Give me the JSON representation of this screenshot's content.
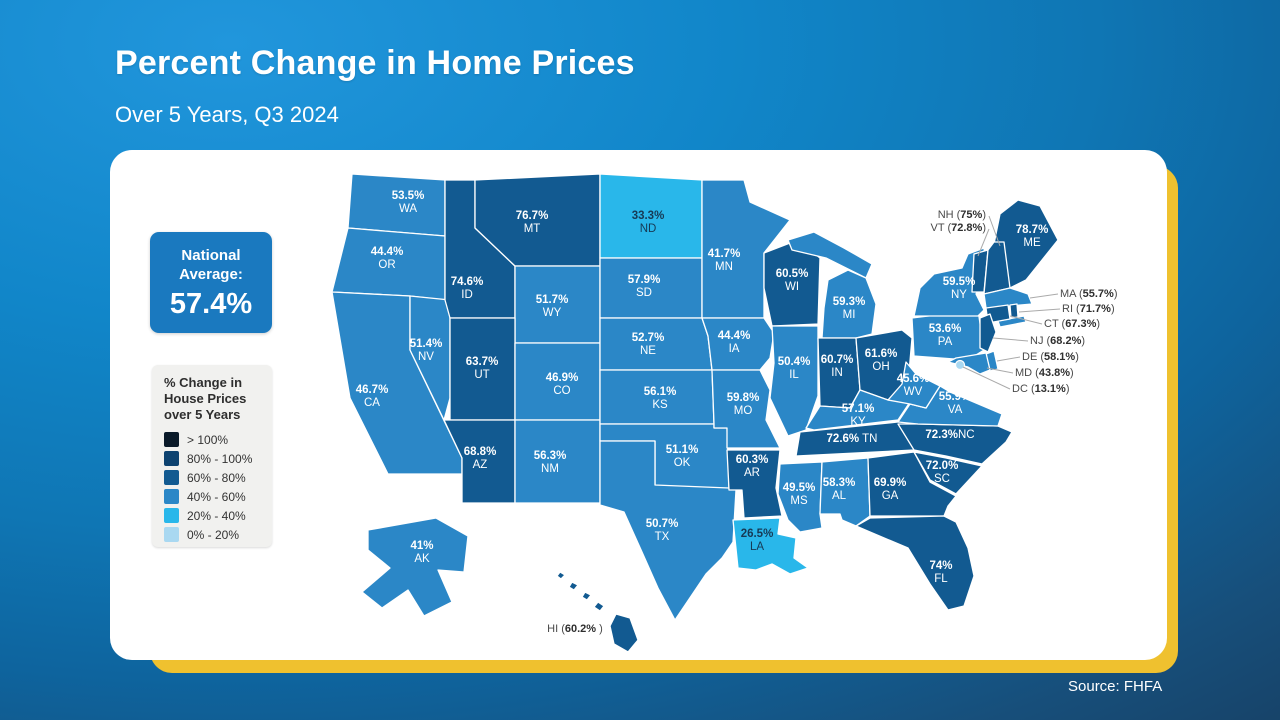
{
  "title": "Percent Change in Home Prices",
  "subtitle": "Over 5 Years, Q3 2024",
  "source": "Source: FHFA",
  "national_average": {
    "label_line1": "National",
    "label_line2": "Average:",
    "value": "57.4%"
  },
  "legend": {
    "title_lines": [
      "% Change in",
      "House Prices",
      "over 5 Years"
    ],
    "items": [
      {
        "label": "> 100%",
        "color": "#0a1a29"
      },
      {
        "label": "80% - 100%",
        "color": "#0d4270"
      },
      {
        "label": "60% - 80%",
        "color": "#125a91"
      },
      {
        "label": "40% - 60%",
        "color": "#2b87c7"
      },
      {
        "label": "20% - 40%",
        "color": "#29b7ea"
      },
      {
        "label": "0% - 20%",
        "color": "#a9d8f1"
      }
    ]
  },
  "colors": {
    "card": "#ffffff",
    "accent_card": "#efc12f",
    "avg_box": "#1a79bf",
    "state_border": "#ffffff",
    "label_light": "#ffffff",
    "label_dark": "#173a55",
    "callout_text": "#4a4a4a",
    "callout_value": "#2e2e2e",
    "leader_line": "#aaaaaa"
  },
  "chart_data": {
    "type": "choropleth",
    "title": "Percent Change in Home Prices",
    "subtitle": "Over 5 Years, Q3 2024",
    "unit": "percent change over 5 years",
    "national_average": 57.4,
    "bands": [
      ">100%",
      "80%-100%",
      "60%-80%",
      "40%-60%",
      "20%-40%",
      "0%-20%"
    ],
    "states": [
      {
        "abbr": "WA",
        "value": 53.5,
        "display": "53.5%"
      },
      {
        "abbr": "OR",
        "value": 44.4,
        "display": "44.4%"
      },
      {
        "abbr": "CA",
        "value": 46.7,
        "display": "46.7%"
      },
      {
        "abbr": "NV",
        "value": 51.4,
        "display": "51.4%"
      },
      {
        "abbr": "ID",
        "value": 74.6,
        "display": "74.6%"
      },
      {
        "abbr": "MT",
        "value": 76.7,
        "display": "76.7%"
      },
      {
        "abbr": "WY",
        "value": 51.7,
        "display": "51.7%"
      },
      {
        "abbr": "UT",
        "value": 63.7,
        "display": "63.7%"
      },
      {
        "abbr": "CO",
        "value": 46.9,
        "display": "46.9%"
      },
      {
        "abbr": "AZ",
        "value": 68.8,
        "display": "68.8%"
      },
      {
        "abbr": "NM",
        "value": 56.3,
        "display": "56.3%"
      },
      {
        "abbr": "ND",
        "value": 33.3,
        "display": "33.3%"
      },
      {
        "abbr": "SD",
        "value": 57.9,
        "display": "57.9%"
      },
      {
        "abbr": "NE",
        "value": 52.7,
        "display": "52.7%"
      },
      {
        "abbr": "KS",
        "value": 56.1,
        "display": "56.1%"
      },
      {
        "abbr": "OK",
        "value": 51.1,
        "display": "51.1%"
      },
      {
        "abbr": "TX",
        "value": 50.7,
        "display": "50.7%"
      },
      {
        "abbr": "MN",
        "value": 41.7,
        "display": "41.7%"
      },
      {
        "abbr": "IA",
        "value": 44.4,
        "display": "44.4%"
      },
      {
        "abbr": "MO",
        "value": 59.8,
        "display": "59.8%"
      },
      {
        "abbr": "AR",
        "value": 60.3,
        "display": "60.3%"
      },
      {
        "abbr": "LA",
        "value": 26.5,
        "display": "26.5%"
      },
      {
        "abbr": "WI",
        "value": 60.5,
        "display": "60.5%"
      },
      {
        "abbr": "IL",
        "value": 50.4,
        "display": "50.4%"
      },
      {
        "abbr": "MS",
        "value": 49.5,
        "display": "49.5%"
      },
      {
        "abbr": "MI",
        "value": 59.3,
        "display": "59.3%"
      },
      {
        "abbr": "IN",
        "value": 60.7,
        "display": "60.7%"
      },
      {
        "abbr": "OH",
        "value": 61.6,
        "display": "61.6%"
      },
      {
        "abbr": "KY",
        "value": 57.1,
        "display": "57.1%"
      },
      {
        "abbr": "TN",
        "value": 72.6,
        "display": "72.6%"
      },
      {
        "abbr": "AL",
        "value": 58.3,
        "display": "58.3%"
      },
      {
        "abbr": "GA",
        "value": 69.9,
        "display": "69.9%"
      },
      {
        "abbr": "FL",
        "value": 74.0,
        "display": "74%"
      },
      {
        "abbr": "SC",
        "value": 72.0,
        "display": "72.0%"
      },
      {
        "abbr": "NC",
        "value": 72.3,
        "display": "72.3%"
      },
      {
        "abbr": "VA",
        "value": 55.9,
        "display": "55.9%"
      },
      {
        "abbr": "WV",
        "value": 45.6,
        "display": "45.6%"
      },
      {
        "abbr": "PA",
        "value": 53.6,
        "display": "53.6%"
      },
      {
        "abbr": "NY",
        "value": 59.5,
        "display": "59.5%"
      },
      {
        "abbr": "ME",
        "value": 78.7,
        "display": "78.7%"
      },
      {
        "abbr": "VT",
        "value": 72.8,
        "display": "72.8%"
      },
      {
        "abbr": "NH",
        "value": 75.0,
        "display": "75%"
      },
      {
        "abbr": "MA",
        "value": 55.7,
        "display": "55.7%"
      },
      {
        "abbr": "RI",
        "value": 71.7,
        "display": "71.7%"
      },
      {
        "abbr": "CT",
        "value": 67.3,
        "display": "67.3%"
      },
      {
        "abbr": "NJ",
        "value": 68.2,
        "display": "68.2%"
      },
      {
        "abbr": "DE",
        "value": 58.1,
        "display": "58.1%"
      },
      {
        "abbr": "MD",
        "value": 43.8,
        "display": "43.8%"
      },
      {
        "abbr": "DC",
        "value": 13.1,
        "display": "13.1%"
      },
      {
        "abbr": "AK",
        "value": 41.0,
        "display": "41%"
      },
      {
        "abbr": "HI",
        "value": 60.2,
        "display": "60.2%"
      }
    ]
  },
  "callouts": [
    {
      "abbr": "NH",
      "prefix": "NH (",
      "value": "75%",
      "suffix": ")"
    },
    {
      "abbr": "VT",
      "prefix": "VT (",
      "value": "72.8%",
      "suffix": ")"
    },
    {
      "abbr": "MA",
      "prefix": "MA (",
      "value": "55.7%",
      "suffix": ")"
    },
    {
      "abbr": "RI",
      "prefix": "RI (",
      "value": "71.7%",
      "suffix": ")"
    },
    {
      "abbr": "CT",
      "prefix": "CT (",
      "value": "67.3%",
      "suffix": ")"
    },
    {
      "abbr": "NJ",
      "prefix": "NJ (",
      "value": "68.2%",
      "suffix": ")"
    },
    {
      "abbr": "DE",
      "prefix": "DE (",
      "value": "58.1%",
      "suffix": ")"
    },
    {
      "abbr": "MD",
      "prefix": "MD (",
      "value": "43.8%",
      "suffix": ")"
    },
    {
      "abbr": "DC",
      "prefix": "DC (",
      "value": "13.1%",
      "suffix": ")"
    },
    {
      "abbr": "HI",
      "prefix": "HI (",
      "value": "60.2%",
      "suffix": " )"
    }
  ]
}
